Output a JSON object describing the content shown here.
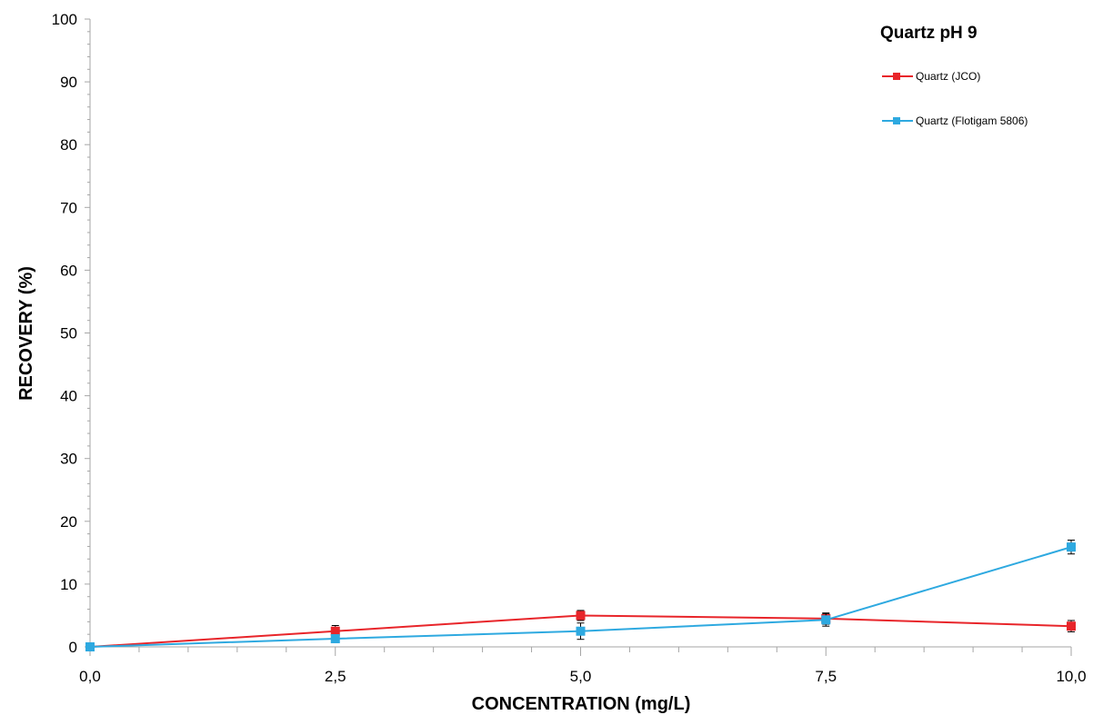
{
  "chart_data": {
    "type": "line",
    "title": "Quartz pH 9",
    "xlabel": "CONCENTRATION (mg/L)",
    "ylabel": "RECOVERY  (%)",
    "xlim": [
      0,
      10
    ],
    "ylim": [
      0,
      100
    ],
    "x_ticks": [
      "0,0",
      "2,5",
      "5,0",
      "7,5",
      "10,0"
    ],
    "x_tick_values": [
      0,
      2.5,
      5,
      7.5,
      10
    ],
    "y_ticks": [
      "0",
      "10",
      "20",
      "30",
      "40",
      "50",
      "60",
      "70",
      "80",
      "90",
      "100"
    ],
    "y_tick_values": [
      0,
      10,
      20,
      30,
      40,
      50,
      60,
      70,
      80,
      90,
      100
    ],
    "grid": false,
    "legend_position": "top-right",
    "x": [
      0,
      2.5,
      5,
      7.5,
      10
    ],
    "series": [
      {
        "name": "Quartz (JCO)",
        "color": "#e8252a",
        "values": [
          0,
          2.5,
          5.0,
          4.5,
          3.3
        ],
        "errors": [
          0.4,
          0.9,
          0.8,
          0.9,
          0.9
        ]
      },
      {
        "name": "Quartz (Flotigam 5806)",
        "color": "#2ea9e0",
        "values": [
          0,
          1.3,
          2.5,
          4.3,
          15.9
        ],
        "errors": [
          0.4,
          0.5,
          1.3,
          1.0,
          1.1
        ]
      }
    ]
  }
}
